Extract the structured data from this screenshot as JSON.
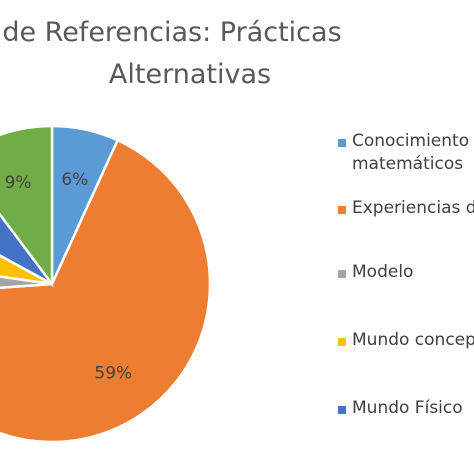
{
  "chart_data": {
    "type": "pie",
    "title_lines": [
      "Resumen de Referencias: Prácticas",
      "Alternativas"
    ],
    "slices": [
      {
        "name": "Conocimiento matemáticos",
        "legend_lines": [
          "Conocimiento",
          "matemáticos"
        ],
        "value": 6,
        "label": "6%",
        "color": "#5B9BD5"
      },
      {
        "name": "Experiencias de",
        "legend_lines": [
          "Experiencias de"
        ],
        "value": 59,
        "label": "59%",
        "color": "#ED7D31"
      },
      {
        "name": "Modelo",
        "legend_lines": [
          "Modelo"
        ],
        "value": 3,
        "label": "",
        "color": "#A5A5A5"
      },
      {
        "name": "Mundo concep",
        "legend_lines": [
          "Mundo concep"
        ],
        "value": 5,
        "label": "",
        "color": "#FFC000"
      },
      {
        "name": "Mundo Físico",
        "legend_lines": [
          "Mundo Físico"
        ],
        "value": 6,
        "label": "6%",
        "color": "#4472C4"
      },
      {
        "name": "",
        "legend_lines": [],
        "value": 9,
        "label": "9%",
        "color": "#70AD47"
      }
    ],
    "legend_position": "right",
    "start_angle_deg": 0,
    "direction": "clockwise"
  }
}
